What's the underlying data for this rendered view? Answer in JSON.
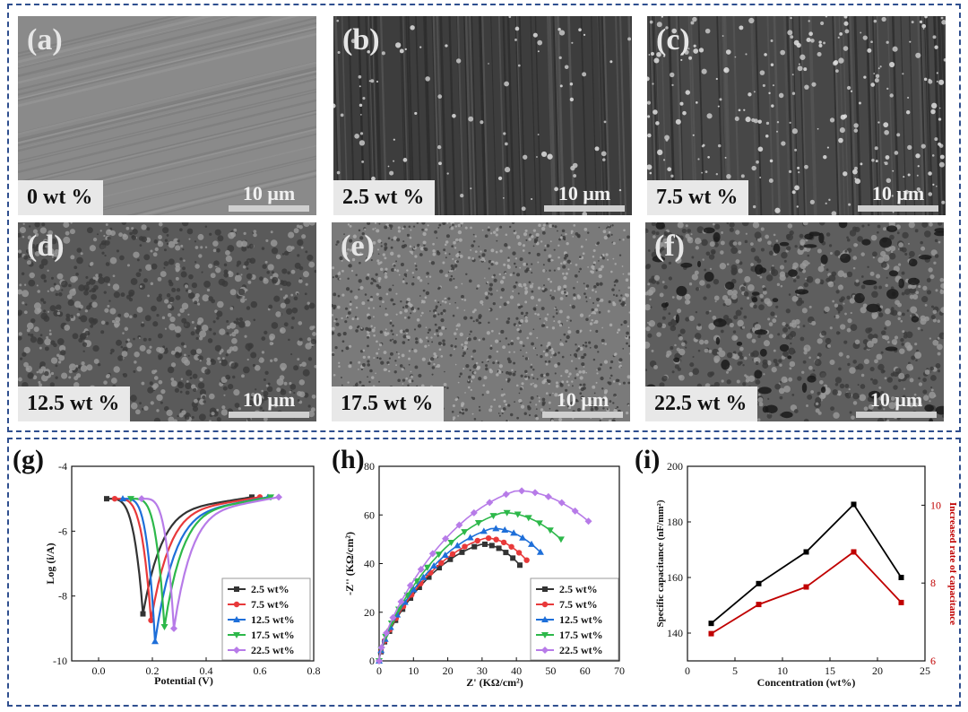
{
  "sem_panels": [
    {
      "letter": "(a)",
      "label": "0 wt %",
      "scale": "10 μm"
    },
    {
      "letter": "(b)",
      "label": "2.5 wt %",
      "scale": "10 μm"
    },
    {
      "letter": "(c)",
      "label": "7.5 wt %",
      "scale": "10 μm"
    },
    {
      "letter": "(d)",
      "label": "12.5 wt %",
      "scale": "10 μm"
    },
    {
      "letter": "(e)",
      "label": "17.5 wt %",
      "scale": "10 μm"
    },
    {
      "letter": "(f)",
      "label": "22.5 wt %",
      "scale": "10 μm"
    }
  ],
  "colors": {
    "frame": "#2f4f8f",
    "s1": "#333333",
    "s2": "#e8393a",
    "s3": "#1e6fd9",
    "s4": "#2db84a",
    "s5": "#b77be8",
    "black_series": "#000000",
    "red_series": "#c00000"
  },
  "chart_data": [
    {
      "panel": "(g)",
      "type": "line",
      "xlabel": "Potential (V)",
      "ylabel": "Log (i/A)",
      "xlim": [
        -0.1,
        0.8
      ],
      "ylim": [
        -10,
        -4
      ],
      "xticks": [
        "0.0",
        "0.2",
        "0.4",
        "0.6",
        "0.8"
      ],
      "yticks": [
        "-4",
        "-6",
        "-8",
        "-10"
      ],
      "legend_position": "lower-right",
      "series": [
        {
          "name": "2.5 wt%",
          "corr_potential": 0.165,
          "min_log_i": -8.55,
          "start": [
            0.03,
            -5.0
          ],
          "end": [
            0.57,
            -4.95
          ]
        },
        {
          "name": "7.5 wt%",
          "corr_potential": 0.195,
          "min_log_i": -8.75,
          "start": [
            0.06,
            -5.0
          ],
          "end": [
            0.6,
            -4.95
          ]
        },
        {
          "name": "12.5 wt%",
          "corr_potential": 0.21,
          "min_log_i": -9.4,
          "start": [
            0.09,
            -5.0
          ],
          "end": [
            0.63,
            -4.95
          ]
        },
        {
          "name": "17.5 wt%",
          "corr_potential": 0.245,
          "min_log_i": -8.95,
          "start": [
            0.12,
            -5.0
          ],
          "end": [
            0.64,
            -4.95
          ]
        },
        {
          "name": "22.5 wt%",
          "corr_potential": 0.28,
          "min_log_i": -9.0,
          "start": [
            0.16,
            -5.0
          ],
          "end": [
            0.67,
            -4.95
          ]
        }
      ]
    },
    {
      "panel": "(h)",
      "type": "scatter",
      "xlabel": "Z' (KΩ/cm²)",
      "ylabel": "-Z'' (KΩ/cm²)",
      "xlim": [
        0,
        70
      ],
      "ylim": [
        0,
        80
      ],
      "xticks": [
        "0",
        "10",
        "20",
        "30",
        "40",
        "50",
        "60",
        "70"
      ],
      "yticks": [
        "0",
        "20",
        "40",
        "60",
        "80"
      ],
      "legend_position": "lower-right",
      "series": [
        {
          "name": "2.5 wt%",
          "end_x": 41,
          "peak": [
            30,
            48
          ]
        },
        {
          "name": "7.5 wt%",
          "end_x": 43,
          "peak": [
            31,
            50.5
          ]
        },
        {
          "name": "12.5 wt%",
          "end_x": 47,
          "peak": [
            33,
            54.5
          ]
        },
        {
          "name": "17.5 wt%",
          "end_x": 53,
          "peak": [
            36,
            61
          ]
        },
        {
          "name": "22.5 wt%",
          "end_x": 61,
          "peak": [
            40,
            70
          ]
        }
      ]
    },
    {
      "panel": "(i)",
      "type": "line",
      "xlabel": "Concentration (wt%)",
      "ylabel": "Specific capacitance (nF/mm²)",
      "y2label": "Increased rate of capacitance",
      "xlim": [
        0,
        25
      ],
      "ylim": [
        130,
        200
      ],
      "y2lim": [
        6,
        11
      ],
      "xticks": [
        "0",
        "5",
        "10",
        "15",
        "20",
        "25"
      ],
      "yticks": [
        "140",
        "160",
        "180",
        "200"
      ],
      "y2ticks": [
        "6",
        "8",
        "10"
      ],
      "x": [
        2.5,
        7.5,
        12.5,
        17.5,
        22.5
      ],
      "series": [
        {
          "axis": "left",
          "values": [
            143.5,
            157.8,
            169.2,
            186.3,
            160.0
          ]
        },
        {
          "axis": "right",
          "values": [
            6.7,
            7.45,
            7.9,
            8.8,
            7.5
          ]
        }
      ]
    }
  ]
}
